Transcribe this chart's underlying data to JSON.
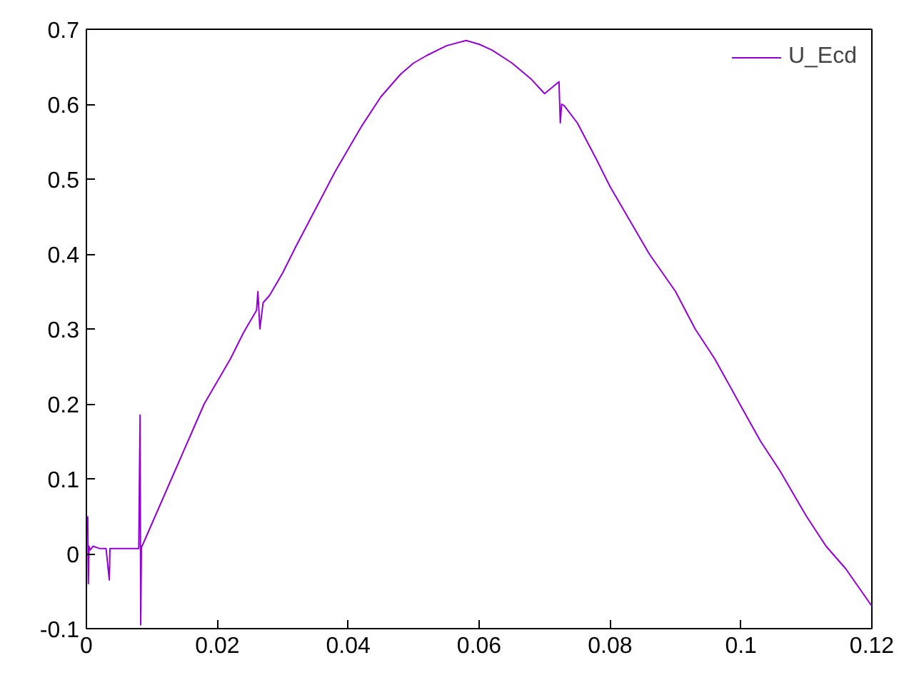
{
  "chart_data": {
    "type": "line",
    "xlim": [
      0,
      0.12
    ],
    "ylim": [
      -0.1,
      0.7
    ],
    "xticks": [
      0,
      0.02,
      0.04,
      0.06,
      0.08,
      0.1,
      0.12
    ],
    "yticks": [
      -0.1,
      0,
      0.1,
      0.2,
      0.3,
      0.4,
      0.5,
      0.6,
      0.7
    ],
    "grid": false,
    "legend": "top right",
    "marker": "none",
    "line_style": "solid",
    "series": [
      {
        "name": "U_Ecd",
        "color": "#9400d3",
        "x": [
          0.0002,
          0.0003,
          0.0004,
          0.0006,
          0.001,
          0.002,
          0.003,
          0.0035,
          0.0036,
          0.004,
          0.006,
          0.008,
          0.0082,
          0.0083,
          0.0084,
          0.0085,
          0.009,
          0.01,
          0.011,
          0.012,
          0.014,
          0.016,
          0.018,
          0.02,
          0.022,
          0.024,
          0.026,
          0.0262,
          0.0265,
          0.027,
          0.028,
          0.03,
          0.032,
          0.035,
          0.038,
          0.04,
          0.042,
          0.045,
          0.048,
          0.05,
          0.052,
          0.055,
          0.058,
          0.06,
          0.062,
          0.065,
          0.068,
          0.07,
          0.0722,
          0.0724,
          0.0726,
          0.073,
          0.075,
          0.078,
          0.08,
          0.083,
          0.086,
          0.09,
          0.093,
          0.096,
          0.1,
          0.103,
          0.106,
          0.11,
          0.113,
          0.116,
          0.12
        ],
        "values": [
          0.05,
          -0.04,
          0.01,
          0.005,
          0.01,
          0.007,
          0.007,
          -0.035,
          0.007,
          0.007,
          0.007,
          0.007,
          0.185,
          -0.095,
          0.01,
          0.01,
          0.02,
          0.04,
          0.06,
          0.08,
          0.12,
          0.16,
          0.2,
          0.23,
          0.26,
          0.295,
          0.325,
          0.35,
          0.3,
          0.335,
          0.345,
          0.375,
          0.41,
          0.46,
          0.51,
          0.54,
          0.57,
          0.61,
          0.64,
          0.655,
          0.665,
          0.678,
          0.685,
          0.68,
          0.672,
          0.655,
          0.633,
          0.614,
          0.63,
          0.575,
          0.6,
          0.598,
          0.575,
          0.525,
          0.49,
          0.445,
          0.4,
          0.35,
          0.3,
          0.26,
          0.197,
          0.15,
          0.11,
          0.05,
          0.01,
          -0.02,
          -0.07
        ]
      }
    ]
  }
}
